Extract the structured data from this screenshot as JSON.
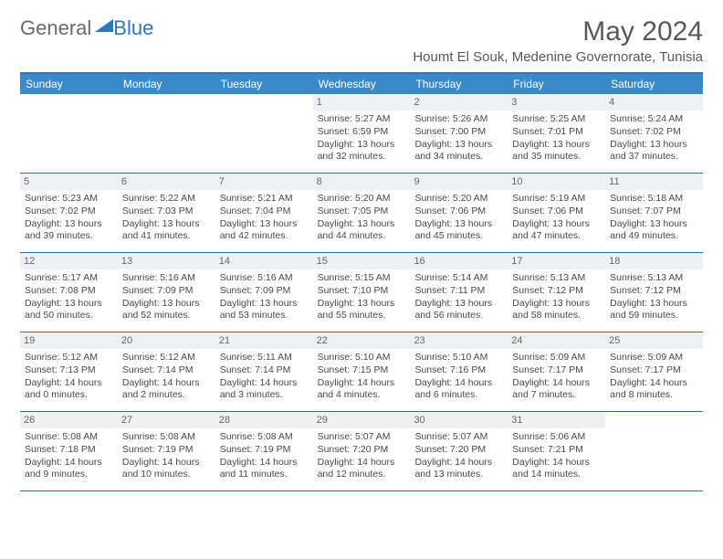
{
  "brand": {
    "part1": "General",
    "part2": "Blue"
  },
  "title": "May 2024",
  "location": "Houmt El Souk, Medenine Governorate, Tunisia",
  "colors": {
    "header_bg": "#3a89c9",
    "header_border": "#2f78b7",
    "daynum_bg": "#eef0f1",
    "week_border": "#3a6a93",
    "text": "#4a4a4a",
    "title_text": "#595959"
  },
  "day_headers": [
    "Sunday",
    "Monday",
    "Tuesday",
    "Wednesday",
    "Thursday",
    "Friday",
    "Saturday"
  ],
  "weeks": [
    [
      {
        "n": "",
        "sunrise": "",
        "sunset": "",
        "daylight": ""
      },
      {
        "n": "",
        "sunrise": "",
        "sunset": "",
        "daylight": ""
      },
      {
        "n": "",
        "sunrise": "",
        "sunset": "",
        "daylight": ""
      },
      {
        "n": "1",
        "sunrise": "Sunrise: 5:27 AM",
        "sunset": "Sunset: 6:59 PM",
        "daylight": "Daylight: 13 hours and 32 minutes."
      },
      {
        "n": "2",
        "sunrise": "Sunrise: 5:26 AM",
        "sunset": "Sunset: 7:00 PM",
        "daylight": "Daylight: 13 hours and 34 minutes."
      },
      {
        "n": "3",
        "sunrise": "Sunrise: 5:25 AM",
        "sunset": "Sunset: 7:01 PM",
        "daylight": "Daylight: 13 hours and 35 minutes."
      },
      {
        "n": "4",
        "sunrise": "Sunrise: 5:24 AM",
        "sunset": "Sunset: 7:02 PM",
        "daylight": "Daylight: 13 hours and 37 minutes."
      }
    ],
    [
      {
        "n": "5",
        "sunrise": "Sunrise: 5:23 AM",
        "sunset": "Sunset: 7:02 PM",
        "daylight": "Daylight: 13 hours and 39 minutes."
      },
      {
        "n": "6",
        "sunrise": "Sunrise: 5:22 AM",
        "sunset": "Sunset: 7:03 PM",
        "daylight": "Daylight: 13 hours and 41 minutes."
      },
      {
        "n": "7",
        "sunrise": "Sunrise: 5:21 AM",
        "sunset": "Sunset: 7:04 PM",
        "daylight": "Daylight: 13 hours and 42 minutes."
      },
      {
        "n": "8",
        "sunrise": "Sunrise: 5:20 AM",
        "sunset": "Sunset: 7:05 PM",
        "daylight": "Daylight: 13 hours and 44 minutes."
      },
      {
        "n": "9",
        "sunrise": "Sunrise: 5:20 AM",
        "sunset": "Sunset: 7:06 PM",
        "daylight": "Daylight: 13 hours and 45 minutes."
      },
      {
        "n": "10",
        "sunrise": "Sunrise: 5:19 AM",
        "sunset": "Sunset: 7:06 PM",
        "daylight": "Daylight: 13 hours and 47 minutes."
      },
      {
        "n": "11",
        "sunrise": "Sunrise: 5:18 AM",
        "sunset": "Sunset: 7:07 PM",
        "daylight": "Daylight: 13 hours and 49 minutes."
      }
    ],
    [
      {
        "n": "12",
        "sunrise": "Sunrise: 5:17 AM",
        "sunset": "Sunset: 7:08 PM",
        "daylight": "Daylight: 13 hours and 50 minutes."
      },
      {
        "n": "13",
        "sunrise": "Sunrise: 5:16 AM",
        "sunset": "Sunset: 7:09 PM",
        "daylight": "Daylight: 13 hours and 52 minutes."
      },
      {
        "n": "14",
        "sunrise": "Sunrise: 5:16 AM",
        "sunset": "Sunset: 7:09 PM",
        "daylight": "Daylight: 13 hours and 53 minutes."
      },
      {
        "n": "15",
        "sunrise": "Sunrise: 5:15 AM",
        "sunset": "Sunset: 7:10 PM",
        "daylight": "Daylight: 13 hours and 55 minutes."
      },
      {
        "n": "16",
        "sunrise": "Sunrise: 5:14 AM",
        "sunset": "Sunset: 7:11 PM",
        "daylight": "Daylight: 13 hours and 56 minutes."
      },
      {
        "n": "17",
        "sunrise": "Sunrise: 5:13 AM",
        "sunset": "Sunset: 7:12 PM",
        "daylight": "Daylight: 13 hours and 58 minutes."
      },
      {
        "n": "18",
        "sunrise": "Sunrise: 5:13 AM",
        "sunset": "Sunset: 7:12 PM",
        "daylight": "Daylight: 13 hours and 59 minutes."
      }
    ],
    [
      {
        "n": "19",
        "sunrise": "Sunrise: 5:12 AM",
        "sunset": "Sunset: 7:13 PM",
        "daylight": "Daylight: 14 hours and 0 minutes."
      },
      {
        "n": "20",
        "sunrise": "Sunrise: 5:12 AM",
        "sunset": "Sunset: 7:14 PM",
        "daylight": "Daylight: 14 hours and 2 minutes."
      },
      {
        "n": "21",
        "sunrise": "Sunrise: 5:11 AM",
        "sunset": "Sunset: 7:14 PM",
        "daylight": "Daylight: 14 hours and 3 minutes."
      },
      {
        "n": "22",
        "sunrise": "Sunrise: 5:10 AM",
        "sunset": "Sunset: 7:15 PM",
        "daylight": "Daylight: 14 hours and 4 minutes."
      },
      {
        "n": "23",
        "sunrise": "Sunrise: 5:10 AM",
        "sunset": "Sunset: 7:16 PM",
        "daylight": "Daylight: 14 hours and 6 minutes."
      },
      {
        "n": "24",
        "sunrise": "Sunrise: 5:09 AM",
        "sunset": "Sunset: 7:17 PM",
        "daylight": "Daylight: 14 hours and 7 minutes."
      },
      {
        "n": "25",
        "sunrise": "Sunrise: 5:09 AM",
        "sunset": "Sunset: 7:17 PM",
        "daylight": "Daylight: 14 hours and 8 minutes."
      }
    ],
    [
      {
        "n": "26",
        "sunrise": "Sunrise: 5:08 AM",
        "sunset": "Sunset: 7:18 PM",
        "daylight": "Daylight: 14 hours and 9 minutes."
      },
      {
        "n": "27",
        "sunrise": "Sunrise: 5:08 AM",
        "sunset": "Sunset: 7:19 PM",
        "daylight": "Daylight: 14 hours and 10 minutes."
      },
      {
        "n": "28",
        "sunrise": "Sunrise: 5:08 AM",
        "sunset": "Sunset: 7:19 PM",
        "daylight": "Daylight: 14 hours and 11 minutes."
      },
      {
        "n": "29",
        "sunrise": "Sunrise: 5:07 AM",
        "sunset": "Sunset: 7:20 PM",
        "daylight": "Daylight: 14 hours and 12 minutes."
      },
      {
        "n": "30",
        "sunrise": "Sunrise: 5:07 AM",
        "sunset": "Sunset: 7:20 PM",
        "daylight": "Daylight: 14 hours and 13 minutes."
      },
      {
        "n": "31",
        "sunrise": "Sunrise: 5:06 AM",
        "sunset": "Sunset: 7:21 PM",
        "daylight": "Daylight: 14 hours and 14 minutes."
      },
      {
        "n": "",
        "sunrise": "",
        "sunset": "",
        "daylight": ""
      }
    ]
  ]
}
